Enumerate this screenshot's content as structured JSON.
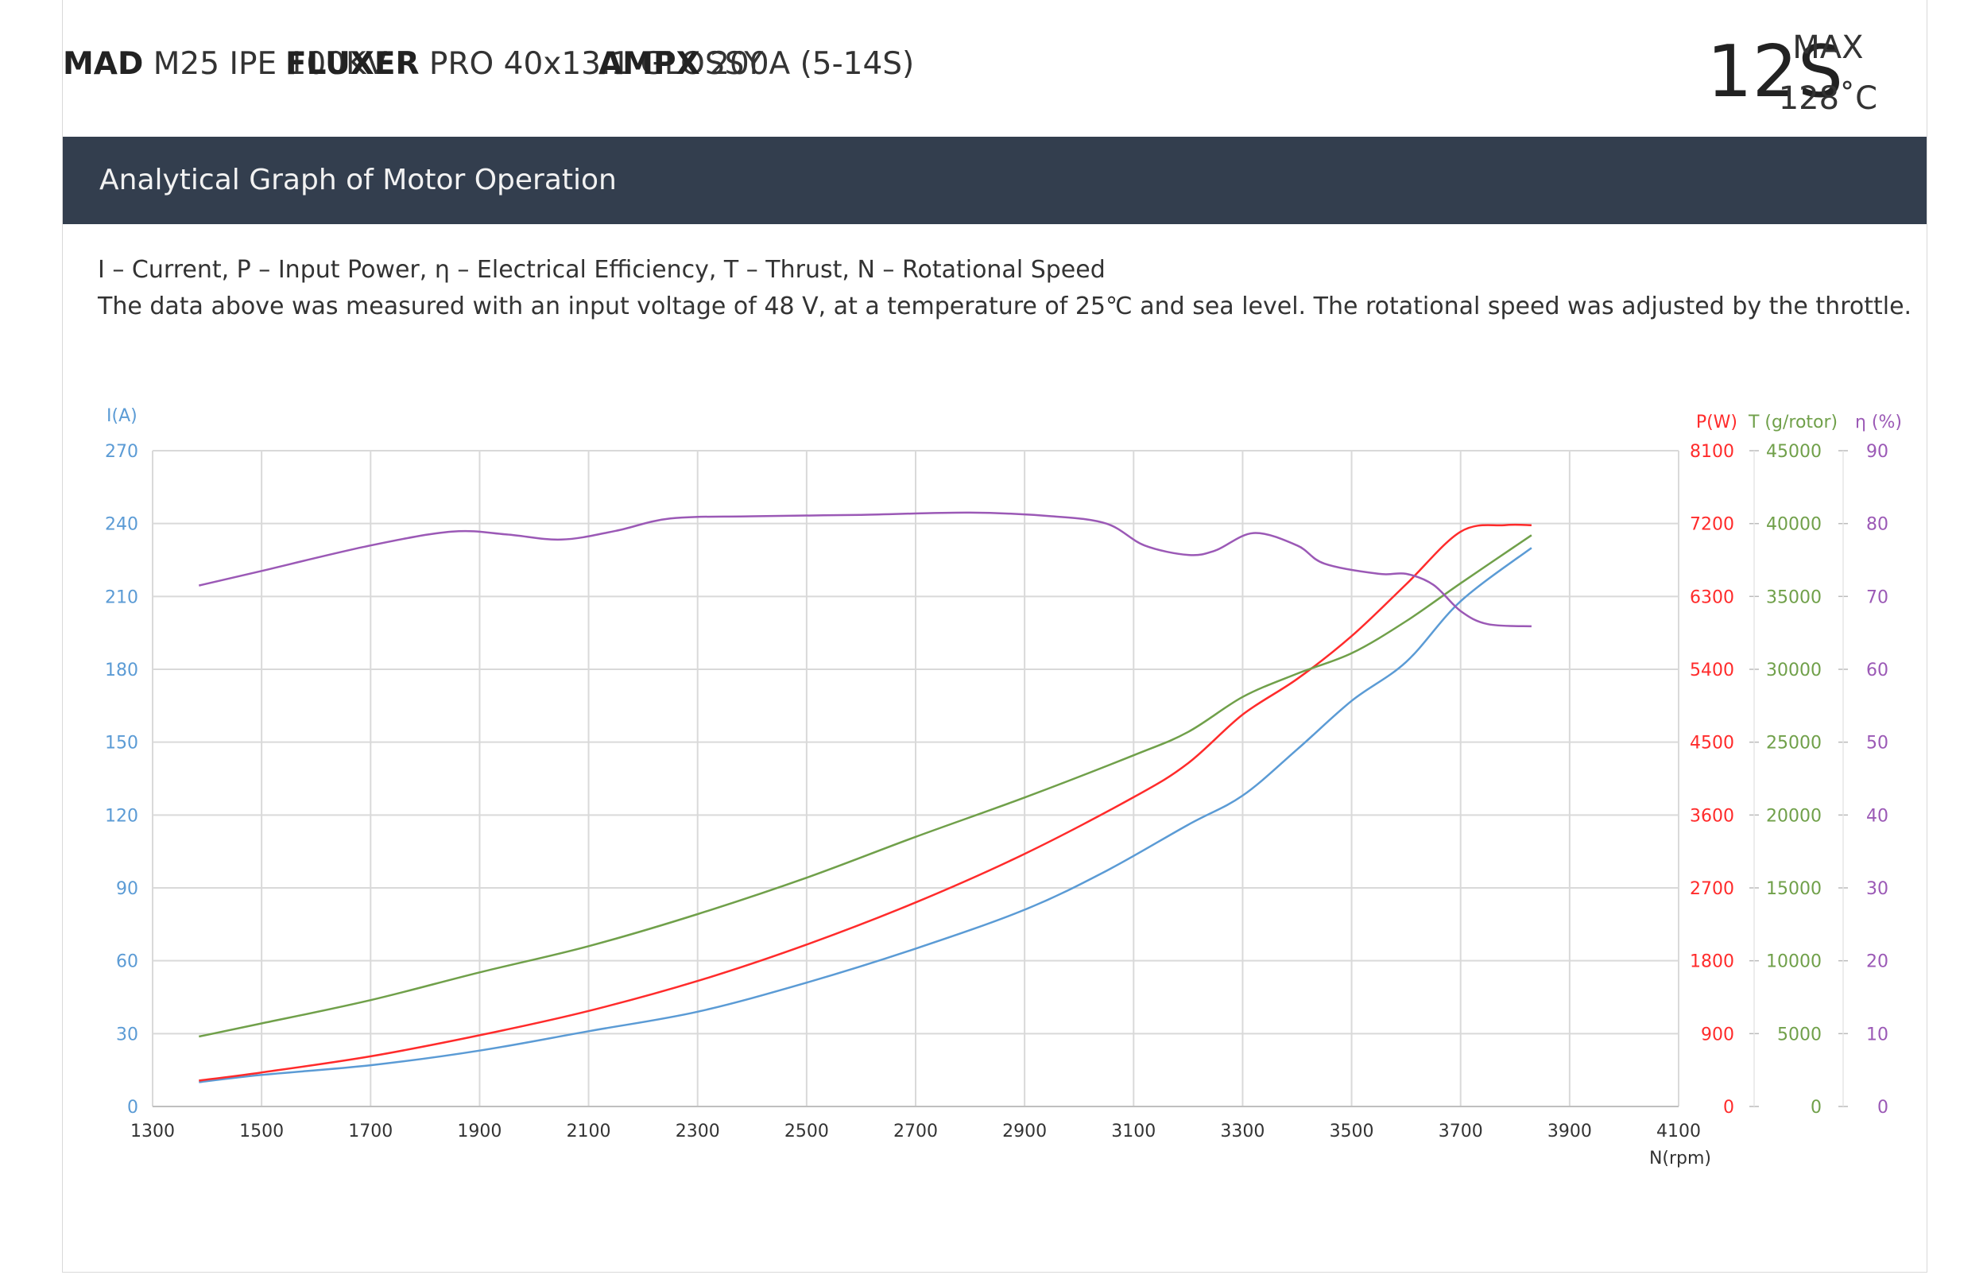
{
  "header": {
    "motor_brand": "MAD",
    "motor_model": "M25 IPE 100KV",
    "prop_brand": "FLUXER",
    "prop_model": "PRO 40x13.1 GLOSSY",
    "esc_brand": "AMPX",
    "esc_model": "200A (5-14S)",
    "cells": "12S",
    "max_label": "MAX",
    "max_temp": "128˚C"
  },
  "section": {
    "title": "Analytical Graph of Motor Operation"
  },
  "description": {
    "line1": "I – Current, P – Input Power, η – Electrical Efficiency, T – Thrust,   N – Rotational Speed",
    "line2": "The data above was measured with an input voltage of   48 V, at a temperature of 25℃ and sea level. The rotational speed was adjusted by the throttle."
  },
  "colors": {
    "current": "#5b9bd5",
    "power": "#ff2b2b",
    "thrust": "#70a04a",
    "efficiency": "#9b59b6",
    "grid": "#d9d9d9",
    "header_bar": "#333e4e"
  },
  "chart_data": {
    "type": "line",
    "xlabel": "N(rpm)",
    "xlim": [
      1300,
      4100
    ],
    "xticks": [
      "1300",
      "1500",
      "1700",
      "1900",
      "2100",
      "2300",
      "2500",
      "2700",
      "2900",
      "3100",
      "3300",
      "3500",
      "3700",
      "3900",
      "4100"
    ],
    "grid": true,
    "axes": {
      "current": {
        "label": "I(A)",
        "lim": [
          0,
          270
        ],
        "ticks": [
          "0",
          "30",
          "60",
          "90",
          "120",
          "150",
          "180",
          "210",
          "240",
          "270"
        ],
        "color": "#5b9bd5"
      },
      "power": {
        "label": "P(W)",
        "lim": [
          0,
          8100
        ],
        "ticks": [
          "0",
          "900",
          "1800",
          "2700",
          "3600",
          "4500",
          "5400",
          "6300",
          "7200",
          "8100"
        ],
        "color": "#ff2b2b"
      },
      "thrust": {
        "label": "T (g/rotor)",
        "lim": [
          0,
          45000
        ],
        "ticks": [
          "0",
          "5000",
          "10000",
          "15000",
          "20000",
          "25000",
          "30000",
          "35000",
          "40000",
          "45000"
        ],
        "color": "#70a04a"
      },
      "efficiency": {
        "label": "η (%)",
        "lim": [
          0,
          90
        ],
        "ticks": [
          "0",
          "10",
          "20",
          "30",
          "40",
          "50",
          "60",
          "70",
          "80",
          "90"
        ],
        "color": "#9b59b6"
      }
    },
    "series": [
      {
        "key": "current",
        "axis": "current",
        "color": "#5b9bd5",
        "x": [
          1385,
          1500,
          1700,
          1900,
          2100,
          2300,
          2500,
          2700,
          2900,
          3050,
          3200,
          3300,
          3400,
          3500,
          3600,
          3700,
          3830
        ],
        "y": [
          10,
          13,
          17,
          23,
          31,
          39,
          51,
          65,
          81,
          97,
          116,
          128,
          147,
          167,
          183,
          208,
          230
        ]
      },
      {
        "key": "power",
        "axis": "power",
        "color": "#ff2b2b",
        "x": [
          1385,
          1500,
          1700,
          1900,
          2100,
          2300,
          2500,
          2700,
          2900,
          3100,
          3200,
          3300,
          3400,
          3500,
          3600,
          3700,
          3780,
          3830
        ],
        "y": [
          320,
          420,
          620,
          880,
          1180,
          1550,
          2000,
          2520,
          3120,
          3820,
          4240,
          4840,
          5280,
          5810,
          6450,
          7100,
          7180,
          7180
        ]
      },
      {
        "key": "thrust",
        "axis": "thrust",
        "color": "#70a04a",
        "x": [
          1385,
          1500,
          1700,
          1900,
          2100,
          2300,
          2500,
          2700,
          2900,
          3100,
          3200,
          3300,
          3400,
          3500,
          3600,
          3700,
          3830
        ],
        "y": [
          4800,
          5700,
          7300,
          9200,
          11000,
          13200,
          15700,
          18500,
          21200,
          24100,
          25700,
          28100,
          29700,
          31100,
          33300,
          35900,
          39200
        ]
      },
      {
        "key": "efficiency",
        "axis": "efficiency",
        "color": "#9b59b6",
        "x": [
          1385,
          1500,
          1700,
          1850,
          1950,
          2050,
          2150,
          2250,
          2400,
          2600,
          2800,
          2950,
          3050,
          3120,
          3200,
          3250,
          3320,
          3400,
          3450,
          3550,
          3600,
          3650,
          3700,
          3750,
          3830
        ],
        "y": [
          71.5,
          73.5,
          77.0,
          78.9,
          78.5,
          77.8,
          79.0,
          80.7,
          81.0,
          81.2,
          81.5,
          81.0,
          80.0,
          77.0,
          75.7,
          76.3,
          78.7,
          77.0,
          74.5,
          73.1,
          73.1,
          71.6,
          68.0,
          66.2,
          65.9
        ]
      }
    ]
  }
}
